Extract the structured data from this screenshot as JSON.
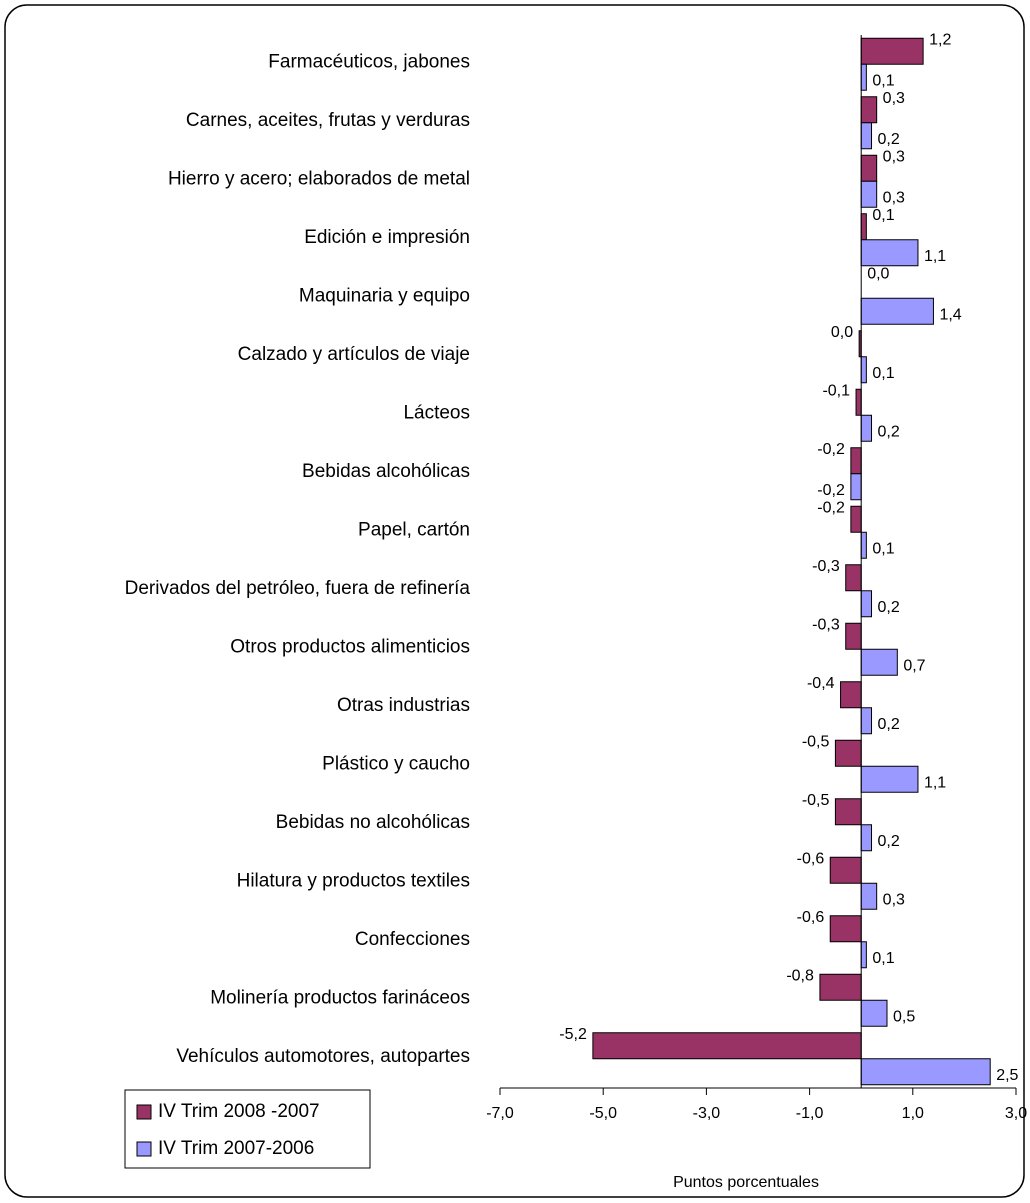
{
  "chart_data": {
    "type": "bar",
    "orientation": "horizontal",
    "categories": [
      "Farmacéuticos, jabones",
      "Carnes, aceites, frutas y verduras",
      "Hierro y acero; elaborados de metal",
      "Edición e impresión",
      "Maquinaria y equipo",
      "Calzado y artículos de viaje",
      "Lácteos",
      "Bebidas alcohólicas",
      "Papel, cartón",
      "Derivados del petróleo, fuera de refinería",
      "Otros productos alimenticios",
      "Otras industrias",
      "Plástico y caucho",
      "Bebidas no alcohólicas",
      "Hilatura y productos textiles",
      "Confecciones",
      "Molinería productos farináceos",
      "Vehículos automotores, autopartes"
    ],
    "series": [
      {
        "name": "IV Trim 2008 -2007",
        "color": "#993366",
        "values": [
          1.2,
          0.3,
          0.3,
          0.1,
          0.0,
          -0.04,
          -0.1,
          -0.2,
          -0.2,
          -0.3,
          -0.3,
          -0.4,
          -0.5,
          -0.5,
          -0.6,
          -0.6,
          -0.8,
          -5.2
        ],
        "value_labels": [
          "1,2",
          "0,3",
          "0,3",
          "0,1",
          "0,0",
          "0,0",
          "-0,1",
          "-0,2",
          "-0,2",
          "-0,3",
          "-0,3",
          "-0,4",
          "-0,5",
          "-0,5",
          "-0,6",
          "-0,6",
          "-0,8",
          "-5,2"
        ]
      },
      {
        "name": "IV Trim 2007-2006",
        "color": "#9999ff",
        "values": [
          0.1,
          0.2,
          0.3,
          1.1,
          1.4,
          0.1,
          0.2,
          -0.2,
          0.1,
          0.2,
          0.7,
          0.2,
          1.1,
          0.2,
          0.3,
          0.1,
          0.5,
          2.5
        ],
        "value_labels": [
          "0,1",
          "0,2",
          "0,3",
          "1,1",
          "1,4",
          "0,1",
          "0,2",
          "-0,2",
          "0,1",
          "0,2",
          "0,7",
          "0,2",
          "1,1",
          "0,2",
          "0,3",
          "0,1",
          "0,5",
          "2,5"
        ]
      }
    ],
    "xlabel": "Puntos porcentuales",
    "xlim": [
      -7,
      3
    ],
    "xticks": [
      {
        "value": -7,
        "label": "-7,0"
      },
      {
        "value": -5,
        "label": "-5,0"
      },
      {
        "value": -3,
        "label": "-3,0"
      },
      {
        "value": -1,
        "label": "-1,0"
      },
      {
        "value": 1,
        "label": "1,0"
      },
      {
        "value": 3,
        "label": "3,0"
      }
    ],
    "legend": "bottom-left"
  }
}
